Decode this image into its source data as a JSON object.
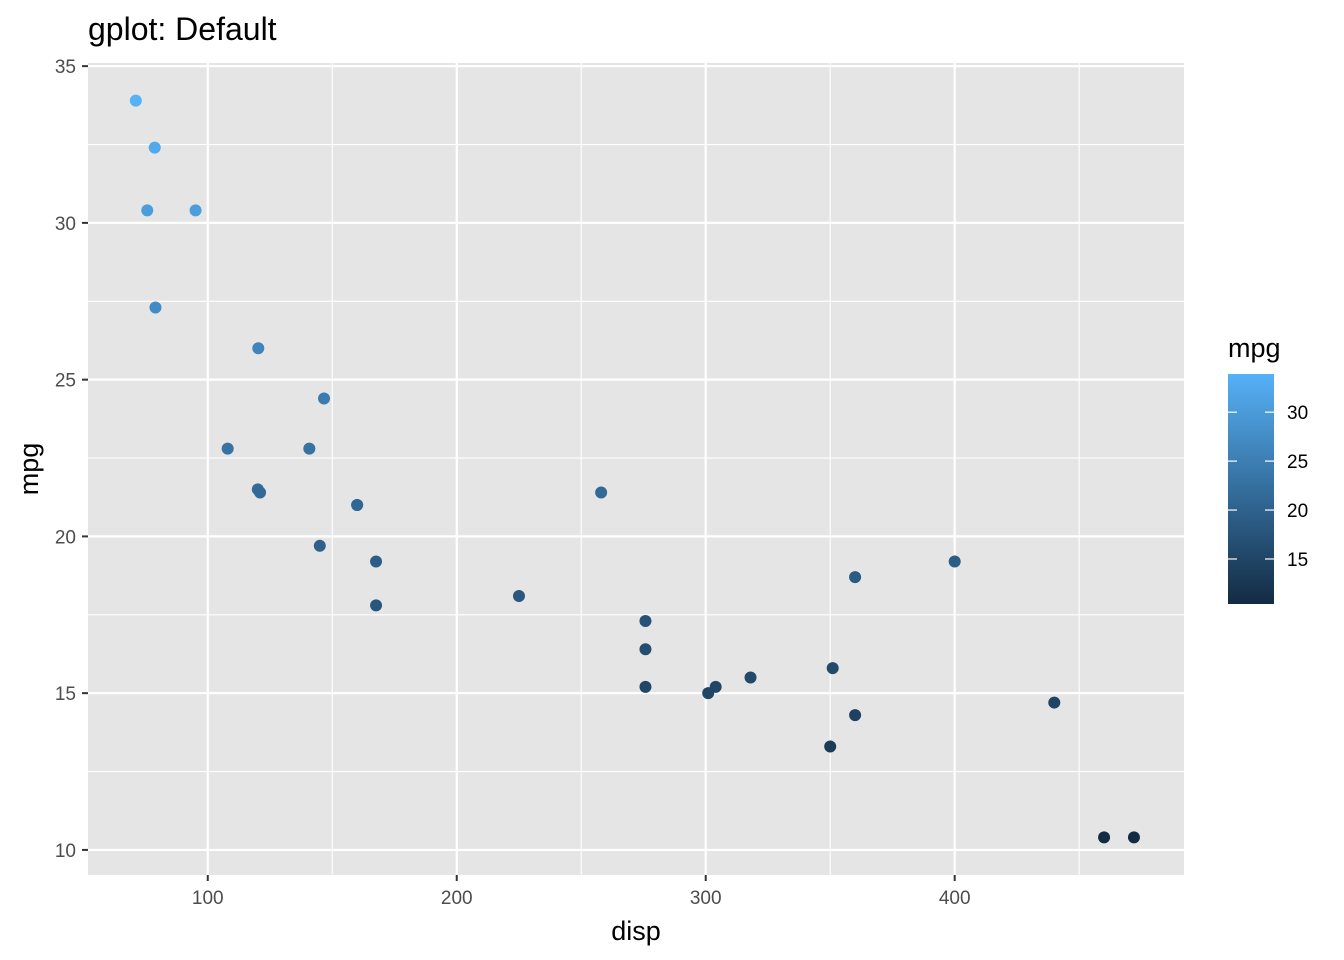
{
  "chart_data": {
    "type": "scatter",
    "title": "gplot: Default",
    "xlabel": "disp",
    "ylabel": "mpg",
    "xlim": [
      51.9,
      492.1
    ],
    "ylim": [
      9.2,
      35.1
    ],
    "x_ticks": [
      100,
      200,
      300,
      400
    ],
    "x_tick_labels": [
      "100",
      "200",
      "300",
      "400"
    ],
    "y_ticks": [
      10,
      15,
      20,
      25,
      30,
      35
    ],
    "y_tick_labels": [
      "10",
      "15",
      "20",
      "25",
      "30",
      "35"
    ],
    "grid": true,
    "points": [
      {
        "x": 160,
        "y": 21.0
      },
      {
        "x": 160,
        "y": 21.0
      },
      {
        "x": 108,
        "y": 22.8
      },
      {
        "x": 258,
        "y": 21.4
      },
      {
        "x": 360,
        "y": 18.7
      },
      {
        "x": 225,
        "y": 18.1
      },
      {
        "x": 360,
        "y": 14.3
      },
      {
        "x": 146.7,
        "y": 24.4
      },
      {
        "x": 140.8,
        "y": 22.8
      },
      {
        "x": 167.6,
        "y": 19.2
      },
      {
        "x": 167.6,
        "y": 17.8
      },
      {
        "x": 275.8,
        "y": 16.4
      },
      {
        "x": 275.8,
        "y": 17.3
      },
      {
        "x": 275.8,
        "y": 15.2
      },
      {
        "x": 472,
        "y": 10.4
      },
      {
        "x": 460,
        "y": 10.4
      },
      {
        "x": 440,
        "y": 14.7
      },
      {
        "x": 78.7,
        "y": 32.4
      },
      {
        "x": 75.7,
        "y": 30.4
      },
      {
        "x": 71.1,
        "y": 33.9
      },
      {
        "x": 120.1,
        "y": 21.5
      },
      {
        "x": 318,
        "y": 15.5
      },
      {
        "x": 304,
        "y": 15.2
      },
      {
        "x": 350,
        "y": 13.3
      },
      {
        "x": 400,
        "y": 19.2
      },
      {
        "x": 79,
        "y": 27.3
      },
      {
        "x": 120.3,
        "y": 26.0
      },
      {
        "x": 95.1,
        "y": 30.4
      },
      {
        "x": 351,
        "y": 15.8
      },
      {
        "x": 145,
        "y": 19.7
      },
      {
        "x": 301,
        "y": 15.0
      },
      {
        "x": 121,
        "y": 21.4
      }
    ],
    "colorbar": {
      "title": "mpg",
      "min": 10.4,
      "max": 33.9,
      "ticks": [
        15,
        20,
        25,
        30
      ],
      "tick_labels": [
        "15",
        "20",
        "25",
        "30"
      ],
      "low_color": "#132B43",
      "high_color": "#56B1F7"
    },
    "legend_position": "right",
    "panel_background": "#E5E5E5",
    "grid_color": "#FFFFFF"
  }
}
